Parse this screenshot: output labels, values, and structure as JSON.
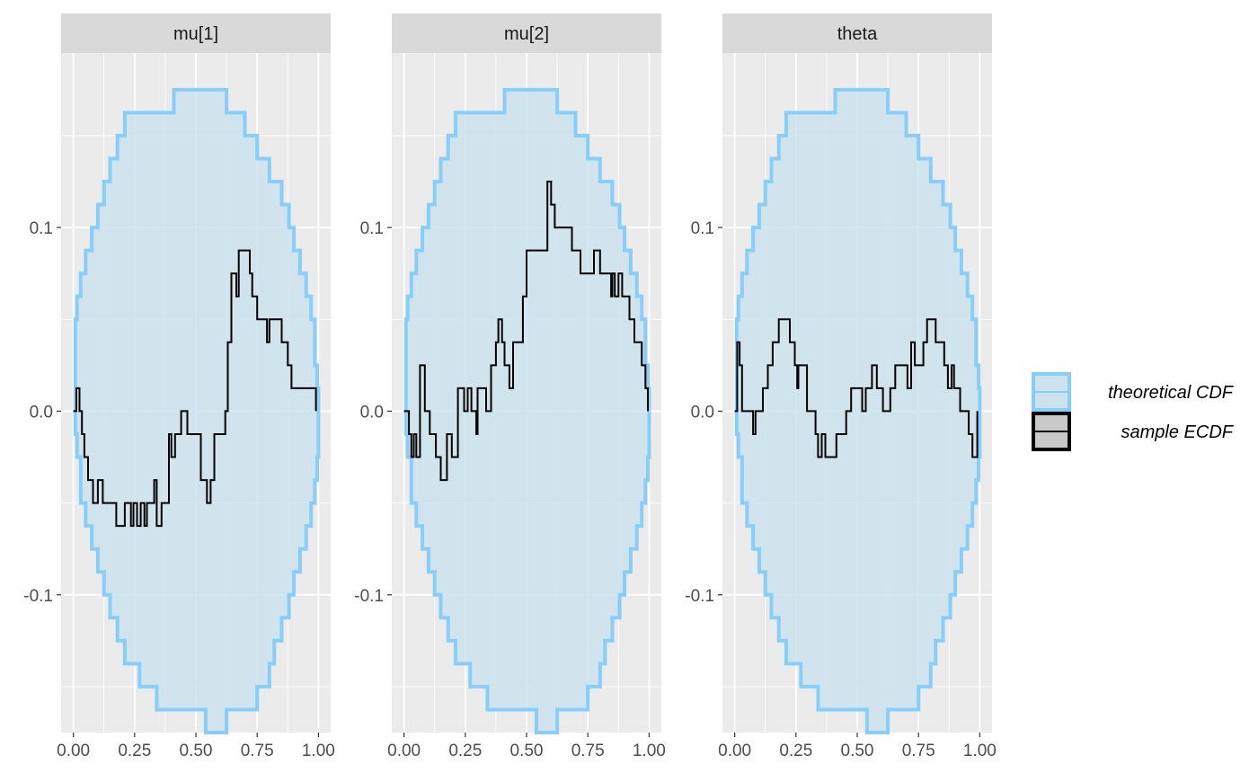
{
  "chart_data": {
    "type": "line",
    "facets": [
      {
        "label": "mu[1]",
        "ecdf": [
          [
            0.0,
            0.0
          ],
          [
            0.0125,
            0.0
          ],
          [
            0.0125,
            0.0125
          ],
          [
            0.025,
            0.0125
          ],
          [
            0.025,
            0.0
          ],
          [
            0.035,
            0.0
          ],
          [
            0.035,
            -0.0125
          ],
          [
            0.045,
            -0.0125
          ],
          [
            0.045,
            -0.025
          ],
          [
            0.06,
            -0.025
          ],
          [
            0.06,
            -0.0375
          ],
          [
            0.08,
            -0.0375
          ],
          [
            0.08,
            -0.05
          ],
          [
            0.1,
            -0.05
          ],
          [
            0.1,
            -0.0375
          ],
          [
            0.12,
            -0.0375
          ],
          [
            0.12,
            -0.05
          ],
          [
            0.175,
            -0.05
          ],
          [
            0.175,
            -0.0625
          ],
          [
            0.21,
            -0.0625
          ],
          [
            0.21,
            -0.05
          ],
          [
            0.235,
            -0.05
          ],
          [
            0.235,
            -0.0625
          ],
          [
            0.245,
            -0.0625
          ],
          [
            0.245,
            -0.05
          ],
          [
            0.26,
            -0.05
          ],
          [
            0.26,
            -0.0625
          ],
          [
            0.275,
            -0.0625
          ],
          [
            0.275,
            -0.05
          ],
          [
            0.29,
            -0.05
          ],
          [
            0.29,
            -0.0625
          ],
          [
            0.3,
            -0.0625
          ],
          [
            0.3,
            -0.05
          ],
          [
            0.33,
            -0.05
          ],
          [
            0.33,
            -0.0375
          ],
          [
            0.34,
            -0.0375
          ],
          [
            0.34,
            -0.0625
          ],
          [
            0.36,
            -0.0625
          ],
          [
            0.36,
            -0.05
          ],
          [
            0.39,
            -0.05
          ],
          [
            0.39,
            -0.0125
          ],
          [
            0.4,
            -0.0125
          ],
          [
            0.4,
            -0.025
          ],
          [
            0.415,
            -0.025
          ],
          [
            0.415,
            -0.0125
          ],
          [
            0.44,
            -0.0125
          ],
          [
            0.44,
            0.0
          ],
          [
            0.465,
            0.0
          ],
          [
            0.465,
            -0.0125
          ],
          [
            0.52,
            -0.0125
          ],
          [
            0.52,
            -0.0375
          ],
          [
            0.545,
            -0.0375
          ],
          [
            0.545,
            -0.05
          ],
          [
            0.56,
            -0.05
          ],
          [
            0.56,
            -0.0375
          ],
          [
            0.575,
            -0.0375
          ],
          [
            0.575,
            -0.0125
          ],
          [
            0.62,
            -0.0125
          ],
          [
            0.62,
            0.0
          ],
          [
            0.63,
            0.0
          ],
          [
            0.63,
            0.0375
          ],
          [
            0.645,
            0.0375
          ],
          [
            0.645,
            0.075
          ],
          [
            0.665,
            0.075
          ],
          [
            0.665,
            0.0625
          ],
          [
            0.675,
            0.0625
          ],
          [
            0.675,
            0.0875
          ],
          [
            0.72,
            0.0875
          ],
          [
            0.72,
            0.075
          ],
          [
            0.73,
            0.075
          ],
          [
            0.73,
            0.0625
          ],
          [
            0.75,
            0.0625
          ],
          [
            0.75,
            0.05
          ],
          [
            0.79,
            0.05
          ],
          [
            0.79,
            0.0375
          ],
          [
            0.8,
            0.0375
          ],
          [
            0.8,
            0.05
          ],
          [
            0.85,
            0.05
          ],
          [
            0.85,
            0.0375
          ],
          [
            0.875,
            0.0375
          ],
          [
            0.875,
            0.025
          ],
          [
            0.89,
            0.025
          ],
          [
            0.89,
            0.0125
          ],
          [
            0.99,
            0.0125
          ],
          [
            0.99,
            0.0
          ]
        ]
      },
      {
        "label": "mu[2]",
        "ecdf": [
          [
            0.0,
            0.0
          ],
          [
            0.02,
            0.0
          ],
          [
            0.02,
            -0.0125
          ],
          [
            0.03,
            -0.0125
          ],
          [
            0.03,
            -0.025
          ],
          [
            0.04,
            -0.025
          ],
          [
            0.04,
            -0.0125
          ],
          [
            0.05,
            -0.0125
          ],
          [
            0.05,
            -0.025
          ],
          [
            0.065,
            -0.025
          ],
          [
            0.065,
            0.025
          ],
          [
            0.085,
            0.025
          ],
          [
            0.085,
            0.0
          ],
          [
            0.105,
            0.0
          ],
          [
            0.105,
            -0.0125
          ],
          [
            0.13,
            -0.0125
          ],
          [
            0.13,
            -0.025
          ],
          [
            0.15,
            -0.025
          ],
          [
            0.15,
            -0.0375
          ],
          [
            0.175,
            -0.0375
          ],
          [
            0.175,
            -0.0125
          ],
          [
            0.195,
            -0.0125
          ],
          [
            0.195,
            -0.025
          ],
          [
            0.22,
            -0.025
          ],
          [
            0.22,
            0.0125
          ],
          [
            0.245,
            0.0125
          ],
          [
            0.245,
            0.0
          ],
          [
            0.26,
            0.0
          ],
          [
            0.26,
            0.0125
          ],
          [
            0.275,
            0.0125
          ],
          [
            0.275,
            0.0
          ],
          [
            0.295,
            0.0
          ],
          [
            0.295,
            -0.0125
          ],
          [
            0.3,
            -0.0125
          ],
          [
            0.3,
            0.0125
          ],
          [
            0.335,
            0.0125
          ],
          [
            0.335,
            0.0
          ],
          [
            0.355,
            0.0
          ],
          [
            0.355,
            0.025
          ],
          [
            0.375,
            0.025
          ],
          [
            0.375,
            0.0375
          ],
          [
            0.385,
            0.0375
          ],
          [
            0.385,
            0.05
          ],
          [
            0.4,
            0.05
          ],
          [
            0.4,
            0.0375
          ],
          [
            0.41,
            0.0375
          ],
          [
            0.41,
            0.025
          ],
          [
            0.43,
            0.025
          ],
          [
            0.43,
            0.0125
          ],
          [
            0.445,
            0.0125
          ],
          [
            0.445,
            0.0375
          ],
          [
            0.485,
            0.0375
          ],
          [
            0.485,
            0.0625
          ],
          [
            0.5,
            0.0625
          ],
          [
            0.5,
            0.0875
          ],
          [
            0.585,
            0.0875
          ],
          [
            0.585,
            0.125
          ],
          [
            0.6,
            0.125
          ],
          [
            0.6,
            0.1125
          ],
          [
            0.615,
            0.1125
          ],
          [
            0.615,
            0.1
          ],
          [
            0.685,
            0.1
          ],
          [
            0.685,
            0.0875
          ],
          [
            0.72,
            0.0875
          ],
          [
            0.72,
            0.075
          ],
          [
            0.775,
            0.075
          ],
          [
            0.775,
            0.0875
          ],
          [
            0.8,
            0.0875
          ],
          [
            0.8,
            0.075
          ],
          [
            0.845,
            0.075
          ],
          [
            0.845,
            0.0625
          ],
          [
            0.85,
            0.0625
          ],
          [
            0.85,
            0.075
          ],
          [
            0.86,
            0.075
          ],
          [
            0.86,
            0.0625
          ],
          [
            0.875,
            0.0625
          ],
          [
            0.875,
            0.075
          ],
          [
            0.89,
            0.075
          ],
          [
            0.89,
            0.0625
          ],
          [
            0.92,
            0.0625
          ],
          [
            0.92,
            0.05
          ],
          [
            0.94,
            0.05
          ],
          [
            0.94,
            0.0375
          ],
          [
            0.97,
            0.0375
          ],
          [
            0.97,
            0.025
          ],
          [
            0.985,
            0.025
          ],
          [
            0.985,
            0.0125
          ],
          [
            0.995,
            0.0125
          ],
          [
            0.995,
            0.0
          ]
        ]
      },
      {
        "label": "theta",
        "ecdf": [
          [
            0.0,
            0.0
          ],
          [
            0.01,
            0.0
          ],
          [
            0.01,
            0.0375
          ],
          [
            0.02,
            0.0375
          ],
          [
            0.02,
            0.025
          ],
          [
            0.03,
            0.025
          ],
          [
            0.03,
            0.0
          ],
          [
            0.075,
            0.0
          ],
          [
            0.075,
            -0.0125
          ],
          [
            0.085,
            -0.0125
          ],
          [
            0.085,
            0.0
          ],
          [
            0.115,
            0.0
          ],
          [
            0.115,
            0.0125
          ],
          [
            0.135,
            0.0125
          ],
          [
            0.135,
            0.025
          ],
          [
            0.155,
            0.025
          ],
          [
            0.155,
            0.0375
          ],
          [
            0.18,
            0.0375
          ],
          [
            0.18,
            0.05
          ],
          [
            0.225,
            0.05
          ],
          [
            0.225,
            0.0375
          ],
          [
            0.245,
            0.0375
          ],
          [
            0.245,
            0.025
          ],
          [
            0.255,
            0.025
          ],
          [
            0.255,
            0.0125
          ],
          [
            0.26,
            0.0125
          ],
          [
            0.26,
            0.025
          ],
          [
            0.295,
            0.025
          ],
          [
            0.295,
            0.0
          ],
          [
            0.33,
            0.0
          ],
          [
            0.33,
            -0.0125
          ],
          [
            0.34,
            -0.0125
          ],
          [
            0.34,
            -0.025
          ],
          [
            0.355,
            -0.025
          ],
          [
            0.355,
            -0.0125
          ],
          [
            0.37,
            -0.0125
          ],
          [
            0.37,
            -0.025
          ],
          [
            0.415,
            -0.025
          ],
          [
            0.415,
            -0.0125
          ],
          [
            0.455,
            -0.0125
          ],
          [
            0.455,
            0.0
          ],
          [
            0.475,
            0.0
          ],
          [
            0.475,
            0.0125
          ],
          [
            0.52,
            0.0125
          ],
          [
            0.52,
            0.0
          ],
          [
            0.535,
            0.0
          ],
          [
            0.535,
            0.0125
          ],
          [
            0.56,
            0.0125
          ],
          [
            0.56,
            0.025
          ],
          [
            0.58,
            0.025
          ],
          [
            0.58,
            0.0125
          ],
          [
            0.605,
            0.0125
          ],
          [
            0.605,
            0.0
          ],
          [
            0.635,
            0.0
          ],
          [
            0.635,
            0.0125
          ],
          [
            0.655,
            0.0125
          ],
          [
            0.655,
            0.025
          ],
          [
            0.705,
            0.025
          ],
          [
            0.705,
            0.0125
          ],
          [
            0.72,
            0.0125
          ],
          [
            0.72,
            0.0375
          ],
          [
            0.735,
            0.0375
          ],
          [
            0.735,
            0.025
          ],
          [
            0.77,
            0.025
          ],
          [
            0.77,
            0.0375
          ],
          [
            0.785,
            0.0375
          ],
          [
            0.785,
            0.05
          ],
          [
            0.82,
            0.05
          ],
          [
            0.82,
            0.0375
          ],
          [
            0.855,
            0.0375
          ],
          [
            0.855,
            0.025
          ],
          [
            0.87,
            0.025
          ],
          [
            0.87,
            0.0125
          ],
          [
            0.885,
            0.0125
          ],
          [
            0.885,
            0.025
          ],
          [
            0.895,
            0.025
          ],
          [
            0.895,
            0.0125
          ],
          [
            0.92,
            0.0125
          ],
          [
            0.92,
            0.0
          ],
          [
            0.955,
            0.0
          ],
          [
            0.955,
            -0.0125
          ],
          [
            0.97,
            -0.0125
          ],
          [
            0.97,
            -0.025
          ],
          [
            0.99,
            -0.025
          ],
          [
            0.99,
            0.0
          ]
        ]
      }
    ],
    "band": {
      "x": [
        0.0,
        0.008,
        0.015,
        0.03,
        0.05,
        0.075,
        0.1,
        0.125,
        0.15,
        0.18,
        0.21,
        0.27,
        0.34,
        0.41,
        0.54,
        0.625,
        0.7,
        0.75,
        0.8,
        0.82,
        0.85,
        0.88,
        0.9,
        0.925,
        0.95,
        0.97,
        0.985,
        0.995,
        1.0
      ],
      "upper": [
        0.0,
        0.05,
        0.0625,
        0.075,
        0.0875,
        0.1,
        0.1125,
        0.125,
        0.1375,
        0.15,
        0.1625,
        0.1625,
        0.1625,
        0.175,
        0.175,
        0.1625,
        0.15,
        0.1375,
        0.125,
        0.125,
        0.1125,
        0.1,
        0.0875,
        0.075,
        0.0625,
        0.05,
        0.025,
        0.0125,
        0.0
      ],
      "lower": [
        0.0,
        -0.0125,
        -0.025,
        -0.05,
        -0.0625,
        -0.075,
        -0.0875,
        -0.1,
        -0.1125,
        -0.125,
        -0.1375,
        -0.15,
        -0.1625,
        -0.1625,
        -0.175,
        -0.1625,
        -0.1625,
        -0.15,
        -0.1375,
        -0.125,
        -0.1125,
        -0.1,
        -0.0875,
        -0.075,
        -0.0625,
        -0.05,
        -0.0375,
        -0.025,
        0.0
      ]
    },
    "x_ticks": [
      0.0,
      0.25,
      0.5,
      0.75,
      1.0
    ],
    "x_tick_labels": [
      "0.00",
      "0.25",
      "0.50",
      "0.75",
      "1.00"
    ],
    "y_ticks": [
      -0.1,
      0.0,
      0.1
    ],
    "y_tick_labels": [
      "-0.1",
      "0.0",
      "0.1"
    ],
    "xlim": [
      -0.05,
      1.05
    ],
    "ylim": [
      -0.175,
      0.195
    ],
    "grid": true,
    "legend_position": "right",
    "legend": [
      {
        "label": "theoretical CDF",
        "key": "band"
      },
      {
        "label": "sample ECDF",
        "key": "line"
      }
    ],
    "colors": {
      "band_fill": "#cce3ee",
      "band_line": "#87cefa",
      "ecdf_line": "#000000",
      "panel_bg": "#ebebeb",
      "strip_bg": "#d9d9d9",
      "grid_major": "#ffffff"
    }
  }
}
